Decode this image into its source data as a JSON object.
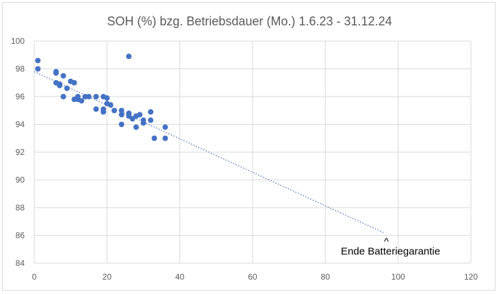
{
  "chart_data": {
    "type": "scatter",
    "title": "SOH (%) bzg. Betriebsdauer (Mo.) 1.6.23 - 31.12.24",
    "xlabel": "",
    "ylabel": "",
    "xlim": [
      0,
      120
    ],
    "ylim": [
      84,
      100
    ],
    "x_ticks": [
      0,
      20,
      40,
      60,
      80,
      100,
      120
    ],
    "y_ticks": [
      84,
      86,
      88,
      90,
      92,
      94,
      96,
      98,
      100
    ],
    "grid": true,
    "marker_color": "#4472c4",
    "trendline": {
      "style": "dotted",
      "color": "#4472c4",
      "x": [
        0,
        96
      ],
      "y": [
        97.8,
        86.2
      ]
    },
    "annotation": {
      "text": "Ende Batteriegarantie",
      "marker": "^",
      "x": 96,
      "y": 86.2
    },
    "points": [
      {
        "x": 1,
        "y": 98.6
      },
      {
        "x": 1,
        "y": 98.0
      },
      {
        "x": 6,
        "y": 97.8
      },
      {
        "x": 6,
        "y": 97.7
      },
      {
        "x": 6,
        "y": 97.0
      },
      {
        "x": 7,
        "y": 96.9
      },
      {
        "x": 7,
        "y": 96.8
      },
      {
        "x": 8,
        "y": 97.5
      },
      {
        "x": 8,
        "y": 96.0
      },
      {
        "x": 9,
        "y": 96.6
      },
      {
        "x": 10,
        "y": 97.1
      },
      {
        "x": 11,
        "y": 97.0
      },
      {
        "x": 11,
        "y": 95.8
      },
      {
        "x": 12,
        "y": 96.0
      },
      {
        "x": 12,
        "y": 95.8
      },
      {
        "x": 13,
        "y": 95.7
      },
      {
        "x": 14,
        "y": 96.0
      },
      {
        "x": 15,
        "y": 96.0
      },
      {
        "x": 17,
        "y": 96.0
      },
      {
        "x": 17,
        "y": 95.1
      },
      {
        "x": 19,
        "y": 96.0
      },
      {
        "x": 19,
        "y": 95.1
      },
      {
        "x": 19,
        "y": 94.9
      },
      {
        "x": 20,
        "y": 95.9
      },
      {
        "x": 20,
        "y": 95.5
      },
      {
        "x": 21,
        "y": 95.4
      },
      {
        "x": 22,
        "y": 95.0
      },
      {
        "x": 24,
        "y": 95.0
      },
      {
        "x": 24,
        "y": 94.7
      },
      {
        "x": 24,
        "y": 94.0
      },
      {
        "x": 26,
        "y": 98.9
      },
      {
        "x": 26,
        "y": 94.8
      },
      {
        "x": 26,
        "y": 94.6
      },
      {
        "x": 27,
        "y": 94.4
      },
      {
        "x": 28,
        "y": 94.6
      },
      {
        "x": 28,
        "y": 93.8
      },
      {
        "x": 29,
        "y": 94.7
      },
      {
        "x": 30,
        "y": 94.3
      },
      {
        "x": 30,
        "y": 94.1
      },
      {
        "x": 32,
        "y": 94.9
      },
      {
        "x": 32,
        "y": 94.3
      },
      {
        "x": 33,
        "y": 93.0
      },
      {
        "x": 36,
        "y": 93.8
      },
      {
        "x": 36,
        "y": 93.0
      }
    ]
  }
}
